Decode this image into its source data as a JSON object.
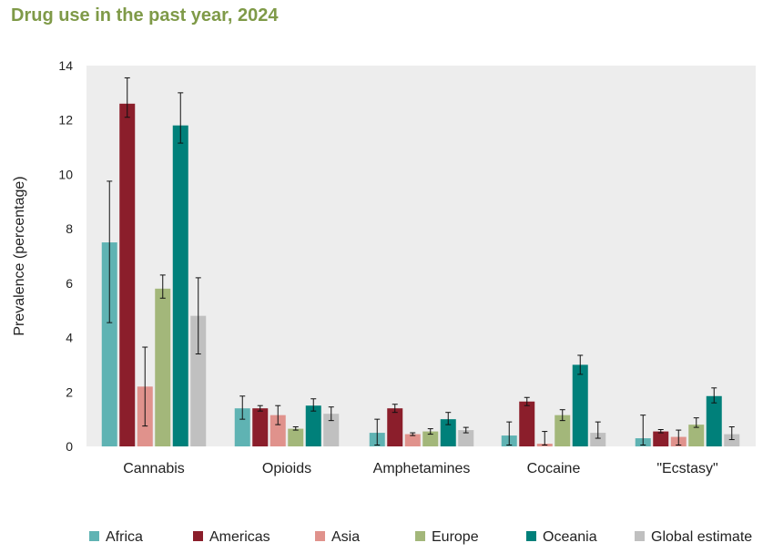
{
  "page": {
    "title": "Drug use in the past year, 2024"
  },
  "chart_data": {
    "type": "bar",
    "title": "Drug use in the past year, 2024",
    "xlabel": "",
    "ylabel": "Prevalence (percentage)",
    "ylim": [
      0,
      14
    ],
    "yticks": [
      0,
      2,
      4,
      6,
      8,
      10,
      12,
      14
    ],
    "grid": "none",
    "legend_position": "bottom",
    "categories": [
      "Cannabis",
      "Opioids",
      "Amphetamines",
      "Cocaine",
      "\"Ecstasy\""
    ],
    "series": [
      {
        "name": "Africa",
        "color": "#5fb3b3",
        "values": [
          7.5,
          1.4,
          0.5,
          0.4,
          0.3
        ],
        "error_low": [
          4.55,
          1.0,
          0.05,
          0.05,
          0.05
        ],
        "error_high": [
          9.75,
          1.85,
          1.0,
          0.9,
          1.15
        ]
      },
      {
        "name": "Americas",
        "color": "#8b1e2b",
        "values": [
          12.6,
          1.4,
          1.4,
          1.65,
          0.55
        ],
        "error_low": [
          12.1,
          1.3,
          1.25,
          1.5,
          0.5
        ],
        "error_high": [
          13.55,
          1.5,
          1.55,
          1.8,
          0.62
        ]
      },
      {
        "name": "Asia",
        "color": "#e0928c",
        "values": [
          2.2,
          1.15,
          0.45,
          0.1,
          0.35
        ],
        "error_low": [
          0.75,
          0.8,
          0.4,
          0.05,
          0.05
        ],
        "error_high": [
          3.65,
          1.5,
          0.5,
          0.55,
          0.6
        ]
      },
      {
        "name": "Europe",
        "color": "#a3b77a",
        "values": [
          5.8,
          0.65,
          0.55,
          1.15,
          0.8
        ],
        "error_low": [
          5.45,
          0.6,
          0.45,
          0.95,
          0.7
        ],
        "error_high": [
          6.3,
          0.72,
          0.65,
          1.35,
          1.05
        ]
      },
      {
        "name": "Oceania",
        "color": "#00807a",
        "values": [
          11.8,
          1.5,
          1.0,
          3.0,
          1.85
        ],
        "error_low": [
          11.15,
          1.3,
          0.8,
          2.65,
          1.6
        ],
        "error_high": [
          13.0,
          1.75,
          1.25,
          3.35,
          2.15
        ]
      },
      {
        "name": "Global estimate",
        "color": "#c0c0c0",
        "values": [
          4.8,
          1.2,
          0.6,
          0.5,
          0.45
        ],
        "error_low": [
          3.4,
          0.95,
          0.5,
          0.3,
          0.25
        ],
        "error_high": [
          6.2,
          1.45,
          0.7,
          0.9,
          0.72
        ]
      }
    ]
  }
}
